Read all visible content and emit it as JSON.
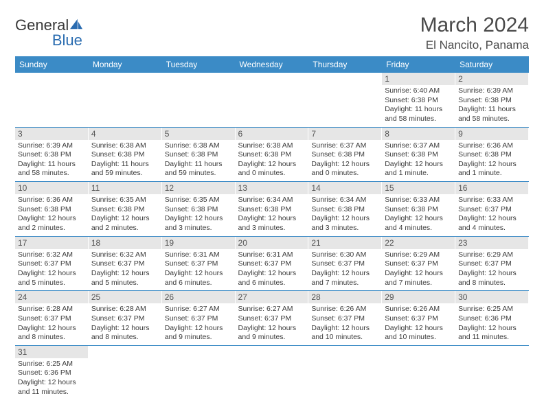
{
  "logo": {
    "word1": "General",
    "word2": "Blue"
  },
  "title": "March 2024",
  "location": "El Nancito, Panama",
  "colors": {
    "header_bg": "#3b8bc6",
    "header_fg": "#ffffff",
    "row_border": "#3b8bc6",
    "daynum_bg": "#e6e6e6",
    "text": "#3a3a3a"
  },
  "daynames": [
    "Sunday",
    "Monday",
    "Tuesday",
    "Wednesday",
    "Thursday",
    "Friday",
    "Saturday"
  ],
  "weeks": [
    [
      null,
      null,
      null,
      null,
      null,
      {
        "n": "1",
        "sr": "Sunrise: 6:40 AM",
        "ss": "Sunset: 6:38 PM",
        "dl": "Daylight: 11 hours and 58 minutes."
      },
      {
        "n": "2",
        "sr": "Sunrise: 6:39 AM",
        "ss": "Sunset: 6:38 PM",
        "dl": "Daylight: 11 hours and 58 minutes."
      }
    ],
    [
      {
        "n": "3",
        "sr": "Sunrise: 6:39 AM",
        "ss": "Sunset: 6:38 PM",
        "dl": "Daylight: 11 hours and 58 minutes."
      },
      {
        "n": "4",
        "sr": "Sunrise: 6:38 AM",
        "ss": "Sunset: 6:38 PM",
        "dl": "Daylight: 11 hours and 59 minutes."
      },
      {
        "n": "5",
        "sr": "Sunrise: 6:38 AM",
        "ss": "Sunset: 6:38 PM",
        "dl": "Daylight: 11 hours and 59 minutes."
      },
      {
        "n": "6",
        "sr": "Sunrise: 6:38 AM",
        "ss": "Sunset: 6:38 PM",
        "dl": "Daylight: 12 hours and 0 minutes."
      },
      {
        "n": "7",
        "sr": "Sunrise: 6:37 AM",
        "ss": "Sunset: 6:38 PM",
        "dl": "Daylight: 12 hours and 0 minutes."
      },
      {
        "n": "8",
        "sr": "Sunrise: 6:37 AM",
        "ss": "Sunset: 6:38 PM",
        "dl": "Daylight: 12 hours and 1 minute."
      },
      {
        "n": "9",
        "sr": "Sunrise: 6:36 AM",
        "ss": "Sunset: 6:38 PM",
        "dl": "Daylight: 12 hours and 1 minute."
      }
    ],
    [
      {
        "n": "10",
        "sr": "Sunrise: 6:36 AM",
        "ss": "Sunset: 6:38 PM",
        "dl": "Daylight: 12 hours and 2 minutes."
      },
      {
        "n": "11",
        "sr": "Sunrise: 6:35 AM",
        "ss": "Sunset: 6:38 PM",
        "dl": "Daylight: 12 hours and 2 minutes."
      },
      {
        "n": "12",
        "sr": "Sunrise: 6:35 AM",
        "ss": "Sunset: 6:38 PM",
        "dl": "Daylight: 12 hours and 3 minutes."
      },
      {
        "n": "13",
        "sr": "Sunrise: 6:34 AM",
        "ss": "Sunset: 6:38 PM",
        "dl": "Daylight: 12 hours and 3 minutes."
      },
      {
        "n": "14",
        "sr": "Sunrise: 6:34 AM",
        "ss": "Sunset: 6:38 PM",
        "dl": "Daylight: 12 hours and 3 minutes."
      },
      {
        "n": "15",
        "sr": "Sunrise: 6:33 AM",
        "ss": "Sunset: 6:38 PM",
        "dl": "Daylight: 12 hours and 4 minutes."
      },
      {
        "n": "16",
        "sr": "Sunrise: 6:33 AM",
        "ss": "Sunset: 6:37 PM",
        "dl": "Daylight: 12 hours and 4 minutes."
      }
    ],
    [
      {
        "n": "17",
        "sr": "Sunrise: 6:32 AM",
        "ss": "Sunset: 6:37 PM",
        "dl": "Daylight: 12 hours and 5 minutes."
      },
      {
        "n": "18",
        "sr": "Sunrise: 6:32 AM",
        "ss": "Sunset: 6:37 PM",
        "dl": "Daylight: 12 hours and 5 minutes."
      },
      {
        "n": "19",
        "sr": "Sunrise: 6:31 AM",
        "ss": "Sunset: 6:37 PM",
        "dl": "Daylight: 12 hours and 6 minutes."
      },
      {
        "n": "20",
        "sr": "Sunrise: 6:31 AM",
        "ss": "Sunset: 6:37 PM",
        "dl": "Daylight: 12 hours and 6 minutes."
      },
      {
        "n": "21",
        "sr": "Sunrise: 6:30 AM",
        "ss": "Sunset: 6:37 PM",
        "dl": "Daylight: 12 hours and 7 minutes."
      },
      {
        "n": "22",
        "sr": "Sunrise: 6:29 AM",
        "ss": "Sunset: 6:37 PM",
        "dl": "Daylight: 12 hours and 7 minutes."
      },
      {
        "n": "23",
        "sr": "Sunrise: 6:29 AM",
        "ss": "Sunset: 6:37 PM",
        "dl": "Daylight: 12 hours and 8 minutes."
      }
    ],
    [
      {
        "n": "24",
        "sr": "Sunrise: 6:28 AM",
        "ss": "Sunset: 6:37 PM",
        "dl": "Daylight: 12 hours and 8 minutes."
      },
      {
        "n": "25",
        "sr": "Sunrise: 6:28 AM",
        "ss": "Sunset: 6:37 PM",
        "dl": "Daylight: 12 hours and 8 minutes."
      },
      {
        "n": "26",
        "sr": "Sunrise: 6:27 AM",
        "ss": "Sunset: 6:37 PM",
        "dl": "Daylight: 12 hours and 9 minutes."
      },
      {
        "n": "27",
        "sr": "Sunrise: 6:27 AM",
        "ss": "Sunset: 6:37 PM",
        "dl": "Daylight: 12 hours and 9 minutes."
      },
      {
        "n": "28",
        "sr": "Sunrise: 6:26 AM",
        "ss": "Sunset: 6:37 PM",
        "dl": "Daylight: 12 hours and 10 minutes."
      },
      {
        "n": "29",
        "sr": "Sunrise: 6:26 AM",
        "ss": "Sunset: 6:37 PM",
        "dl": "Daylight: 12 hours and 10 minutes."
      },
      {
        "n": "30",
        "sr": "Sunrise: 6:25 AM",
        "ss": "Sunset: 6:36 PM",
        "dl": "Daylight: 12 hours and 11 minutes."
      }
    ],
    [
      {
        "n": "31",
        "sr": "Sunrise: 6:25 AM",
        "ss": "Sunset: 6:36 PM",
        "dl": "Daylight: 12 hours and 11 minutes."
      },
      null,
      null,
      null,
      null,
      null,
      null
    ]
  ]
}
